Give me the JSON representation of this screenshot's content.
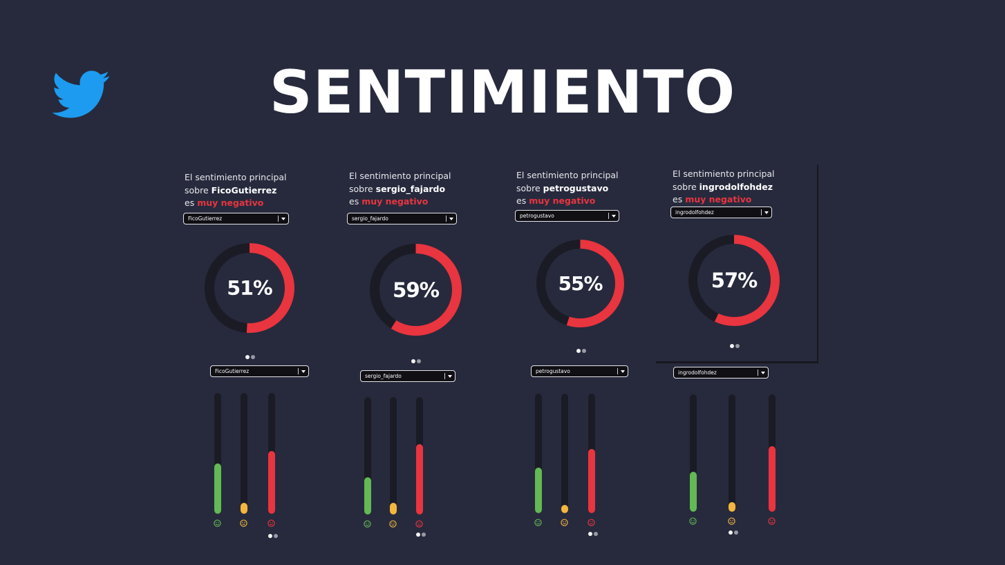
{
  "page": {
    "title": "SENTIMIENTO",
    "logo_icon": "twitter-bird-icon"
  },
  "colors": {
    "positive": "#63b954",
    "neutral": "#f3b63f",
    "negative": "#e8353f",
    "track": "#1a1b24"
  },
  "panels": [
    {
      "caption_line1": "El sentimiento principal",
      "caption_sobre": "sobre",
      "handle": "FicoGutierrez",
      "caption_es": "es",
      "sentiment": "muy negativo",
      "dropdown_top": "FicoGutierrez",
      "percent_label": "51%",
      "percent": 51,
      "dropdown_bottom": "FicoGutierrez",
      "bars": {
        "positive": 0.42,
        "neutral": 0.09,
        "negative": 0.52
      }
    },
    {
      "caption_line1": "El sentimiento principal",
      "caption_sobre": "sobre",
      "handle": "sergio_fajardo",
      "caption_es": "es",
      "sentiment": "muy negativo",
      "dropdown_top": "sergio_fajardo",
      "percent_label": "59%",
      "percent": 59,
      "dropdown_bottom": "sergio_fajardo",
      "bars": {
        "positive": 0.32,
        "neutral": 0.1,
        "negative": 0.6
      }
    },
    {
      "caption_line1": "El sentimiento principal",
      "caption_sobre": "sobre",
      "handle": "petrogustavo",
      "caption_es": "es",
      "sentiment": "muy negativo",
      "dropdown_top": "petrogustavo",
      "percent_label": "55%",
      "percent": 55,
      "dropdown_bottom": "petrogustavo",
      "bars": {
        "positive": 0.38,
        "neutral": 0.07,
        "negative": 0.54
      }
    },
    {
      "caption_line1": "El sentimiento principal",
      "caption_sobre": "sobre",
      "handle": "ingrodolfohdez",
      "caption_es": "es",
      "sentiment": "muy negativo",
      "dropdown_top": "ingrodolfohdez",
      "percent_label": "57%",
      "percent": 57,
      "dropdown_bottom": "ingrodolfohdez",
      "bars": {
        "positive": 0.34,
        "neutral": 0.08,
        "negative": 0.56
      }
    }
  ]
}
